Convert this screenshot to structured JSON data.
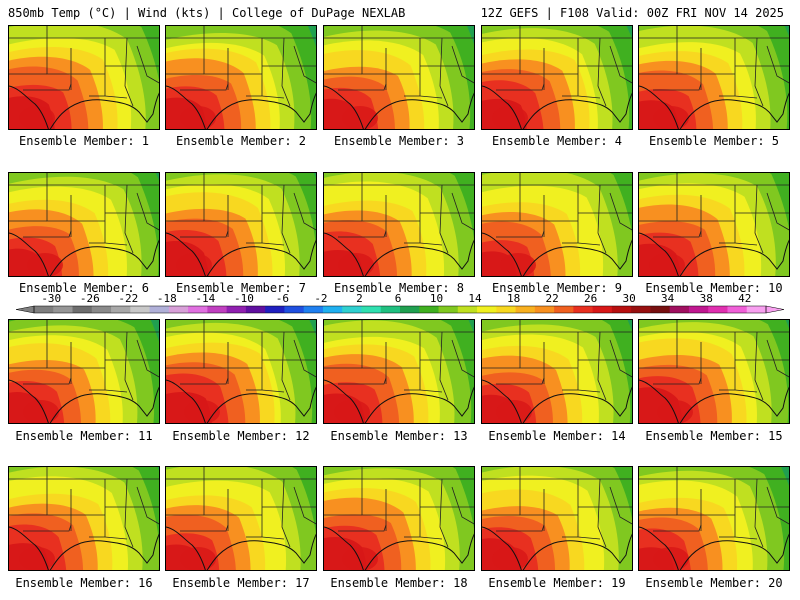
{
  "header": {
    "left": "850mb Temp (°C) | Wind (kts) | College of DuPage NEXLAB",
    "right": "12Z GEFS | F108 Valid: 00Z FRI NOV 14 2025"
  },
  "members": [
    "Ensemble Member: 1",
    "Ensemble Member: 2",
    "Ensemble Member: 3",
    "Ensemble Member: 4",
    "Ensemble Member: 5",
    "Ensemble Member: 6",
    "Ensemble Member: 7",
    "Ensemble Member: 8",
    "Ensemble Member: 9",
    "Ensemble Member: 10",
    "Ensemble Member: 11",
    "Ensemble Member: 12",
    "Ensemble Member: 13",
    "Ensemble Member: 14",
    "Ensemble Member: 15",
    "Ensemble Member: 16",
    "Ensemble Member: 17",
    "Ensemble Member: 18",
    "Ensemble Member: 19",
    "Ensemble Member: 20"
  ],
  "colorbar": {
    "labels": [
      "-30",
      "-26",
      "-22",
      "-18",
      "-14",
      "-10",
      "-6",
      "-2",
      "2",
      "6",
      "10",
      "14",
      "18",
      "22",
      "26",
      "30",
      "34",
      "38",
      "42"
    ],
    "colors": [
      "#7f7f7f",
      "#969696",
      "#6e6e6e",
      "#8a8a8a",
      "#a8a8a8",
      "#c8c8c8",
      "#b0b0d8",
      "#d8a0d8",
      "#e070e0",
      "#c040c0",
      "#9020b0",
      "#6010a0",
      "#2020c0",
      "#2050e0",
      "#2080f0",
      "#20b0f0",
      "#30d0d0",
      "#30e0b0",
      "#20c080",
      "#20a050",
      "#40b020",
      "#80c820",
      "#c0e020",
      "#f0f020",
      "#f8d820",
      "#f8b020",
      "#f89020",
      "#f06020",
      "#e83020",
      "#d81818",
      "#b81010",
      "#981010",
      "#781010",
      "#a01060",
      "#c01890",
      "#e030b0",
      "#f060d8",
      "#f8a0f0"
    ]
  },
  "palette": {
    "deep_red": "#d81818",
    "red": "#e83020",
    "orange_red": "#f06020",
    "orange": "#f89020",
    "yellow_orange": "#f8d820",
    "yellow": "#f0f020",
    "yellow_green": "#c0e020",
    "green": "#80c820",
    "mid_green": "#40b020",
    "dark_green": "#20a050"
  }
}
